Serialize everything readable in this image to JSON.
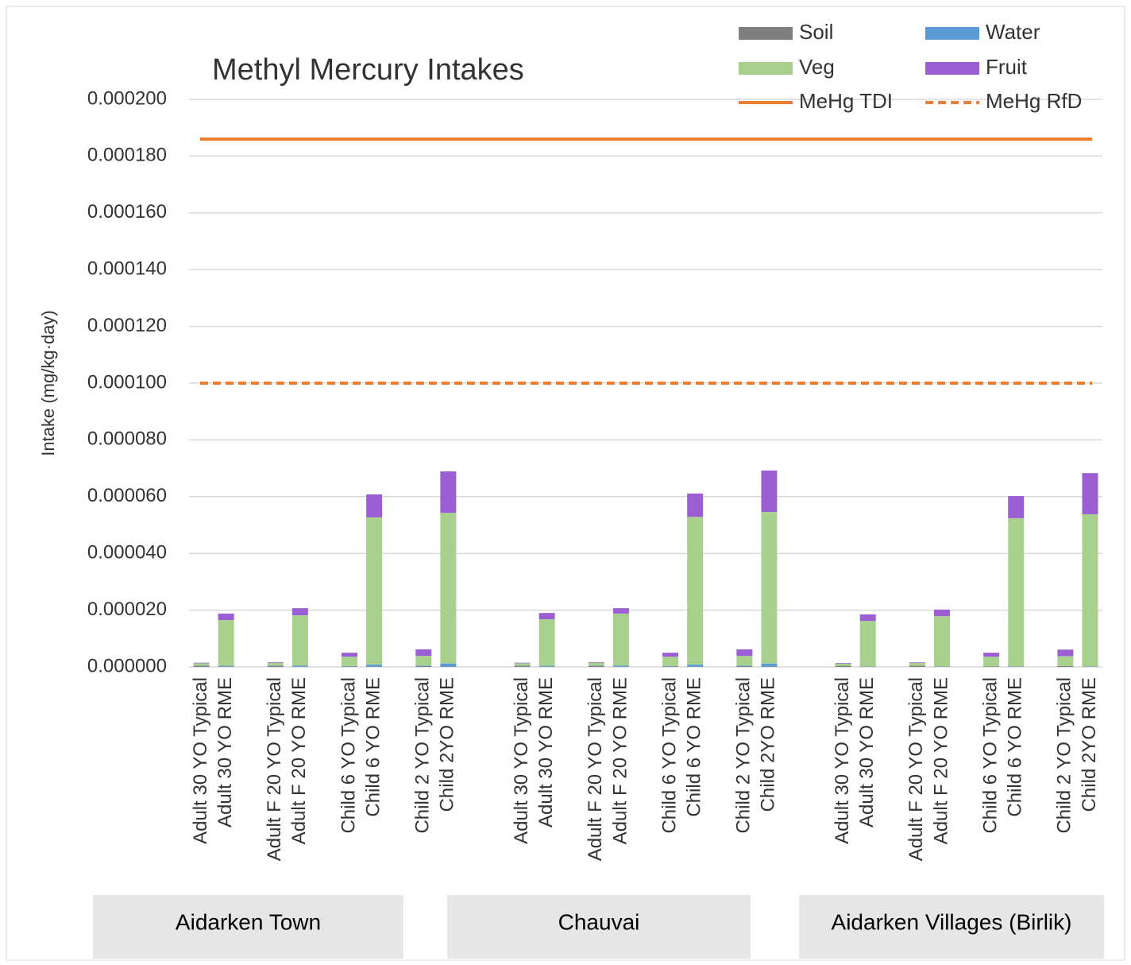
{
  "chart_data": {
    "type": "stacked_bar",
    "title": "Methyl Mercury Intakes",
    "y_label": "Intake (mg/kg·day)",
    "categories": [
      "Adult 30 YO Typical",
      "Adult 30 YO RME",
      null,
      "Adult F 20 YO Typical",
      "Adult F 20 YO RME",
      null,
      "Child 6 YO Typical",
      "Child 6 YO RME",
      null,
      "Child 2 YO Typical",
      "Child 2YO RME",
      null,
      null,
      "Adult 30 YO Typical",
      "Adult 30 YO RME",
      null,
      "Adult F 20 YO Typical",
      "Adult F 20 YO RME",
      null,
      "Child 6 YO Typical",
      "Child 6 YO RME",
      null,
      "Child 2 YO Typical",
      "Child 2YO RME",
      null,
      null,
      "Adult 30 YO Typical",
      "Adult 30 YO RME",
      null,
      "Adult F 20 YO Typical",
      "Adult F 20 YO RME",
      null,
      "Child 6 YO Typical",
      "Child 6 YO RME",
      null,
      "Child 2 YO Typical",
      "Child 2YO RME"
    ],
    "groups": [
      "Aidarken Town",
      "Chauvai",
      "Aidarken Villages (Birlik)"
    ],
    "series": [
      {
        "name": "Soil",
        "color": "#7f7f7f",
        "values": [
          4e-07,
          1e-07,
          null,
          4e-07,
          1e-07,
          null,
          2e-07,
          1e-07,
          null,
          3e-07,
          1e-07,
          null,
          null,
          4e-07,
          1e-07,
          null,
          4e-07,
          1e-07,
          null,
          2e-07,
          1e-07,
          null,
          3e-07,
          1e-07,
          null,
          null,
          4e-07,
          1e-07,
          null,
          4e-07,
          1e-07,
          null,
          2e-07,
          1e-07,
          null,
          3e-07,
          1e-07
        ]
      },
      {
        "name": "Water",
        "color": "#5b9bd5",
        "values": [
          1e-07,
          3e-07,
          null,
          1e-07,
          4e-07,
          null,
          1e-07,
          7e-07,
          null,
          2e-07,
          1.1e-06,
          null,
          null,
          1e-07,
          3e-07,
          null,
          1e-07,
          4e-07,
          null,
          1e-07,
          7e-07,
          null,
          2e-07,
          1.1e-06,
          null,
          null,
          0,
          1e-07,
          null,
          0,
          1e-07,
          null,
          0,
          1e-07,
          null,
          0,
          1e-07
        ]
      },
      {
        "name": "Veg",
        "color": "#a9d18e",
        "values": [
          8e-07,
          1.61e-05,
          null,
          1e-06,
          1.77e-05,
          null,
          3.3e-06,
          5.19e-05,
          null,
          3.4e-06,
          5.31e-05,
          null,
          null,
          8e-07,
          1.64e-05,
          null,
          1e-06,
          1.83e-05,
          null,
          3.3e-06,
          5.21e-05,
          null,
          3.4e-06,
          5.34e-05,
          null,
          null,
          8e-07,
          1.6e-05,
          null,
          1e-06,
          1.77e-05,
          null,
          3.4e-06,
          5.22e-05,
          null,
          3.5e-06,
          5.36e-05
        ]
      },
      {
        "name": "Fruit",
        "color": "#9b5fd3",
        "values": [
          2e-07,
          2.3e-06,
          null,
          2e-07,
          2.5e-06,
          null,
          1.4e-06,
          8.1e-06,
          null,
          2.3e-06,
          1.46e-05,
          null,
          null,
          2e-07,
          2.2e-06,
          null,
          2e-07,
          1.9e-06,
          null,
          1.4e-06,
          8.2e-06,
          null,
          2.3e-06,
          1.46e-05,
          null,
          null,
          2e-07,
          2.3e-06,
          null,
          2e-07,
          2.3e-06,
          null,
          1.4e-06,
          7.8e-06,
          null,
          2.3e-06,
          1.45e-05
        ]
      }
    ],
    "reference_lines": [
      {
        "name": "MeHg TDI",
        "value": 0.000186,
        "color": "#ed7d31",
        "style": "solid"
      },
      {
        "name": "MeHg RfD",
        "value": 0.0001,
        "color": "#ed7d31",
        "style": "dashed"
      }
    ],
    "ylim": [
      0,
      0.0002
    ],
    "yticks": [
      {
        "value": 0,
        "label": "0.000000"
      },
      {
        "value": 2e-05,
        "label": "0.000020"
      },
      {
        "value": 4e-05,
        "label": "0.000040"
      },
      {
        "value": 6e-05,
        "label": "0.000060"
      },
      {
        "value": 8e-05,
        "label": "0.000080"
      },
      {
        "value": 0.0001,
        "label": "0.000100"
      },
      {
        "value": 0.00012,
        "label": "0.000120"
      },
      {
        "value": 0.00014,
        "label": "0.000140"
      },
      {
        "value": 0.00016,
        "label": "0.000160"
      },
      {
        "value": 0.00018,
        "label": "0.000180"
      },
      {
        "value": 0.0002,
        "label": "0.000200"
      }
    ],
    "grid": true,
    "legend": "top-right"
  }
}
